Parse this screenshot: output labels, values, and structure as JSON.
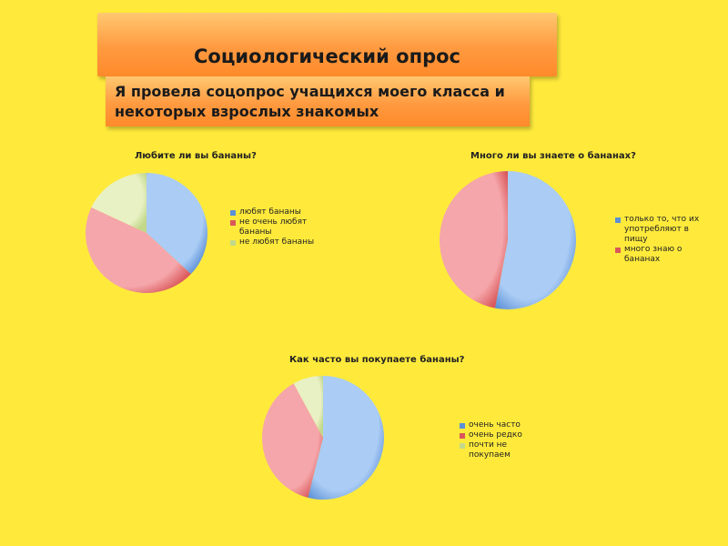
{
  "header": {
    "title": "Социологический опрос",
    "subtitle_line1": "Я провела соцопрос учащихся моего класса и",
    "subtitle_line2": "некоторых взрослых знакомых"
  },
  "colors": {
    "background": "#ffea3c",
    "blue": "#5b8fd6",
    "red": "#d9575a",
    "green": "#c3d88a"
  },
  "chart_data": [
    {
      "type": "pie",
      "title": "Любите ли вы бананы?",
      "categories": [
        "любят бананы",
        "не очень любят бананы",
        "не любят бананы"
      ],
      "values": [
        37,
        45,
        18
      ],
      "legend_position": "right"
    },
    {
      "type": "pie",
      "title": "Много ли вы знаете о бананах?",
      "categories": [
        "только то, что их употребляют в пищу",
        "много знаю о бананах"
      ],
      "values": [
        53,
        47
      ],
      "legend_position": "right"
    },
    {
      "type": "pie",
      "title": "Как часто вы покупаете бананы?",
      "categories": [
        "очень часто",
        "очень редко",
        "почти не покупаем"
      ],
      "values": [
        54,
        38,
        8
      ],
      "legend_position": "right"
    }
  ]
}
